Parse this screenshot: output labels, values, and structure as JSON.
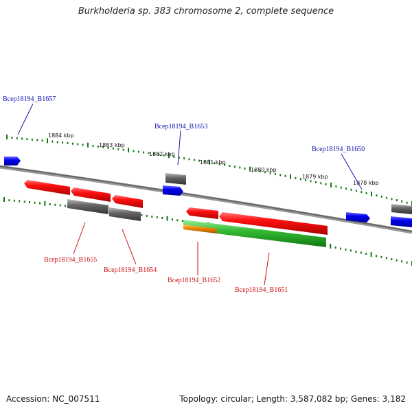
{
  "title": "Burkholderia sp. 383 chromosome 2, complete sequence",
  "footer": {
    "accession": "Accession: NC_007511",
    "summary": "Topology: circular; Length: 3,587,082 bp; Genes: 3,182"
  },
  "scale": {
    "labels": [
      "1884 kbp",
      "1883 kbp",
      "1882 kbp",
      "1881 kbp",
      "1880 kbp",
      "1879 kbp",
      "1878 kbp"
    ]
  },
  "gene_labels": {
    "b1657": "Bcep18194_B1657",
    "b1653": "Bcep18194_B1653",
    "b1650": "Bcep18194_B1650",
    "b1655": "Bcep18194_B1655",
    "b1654": "Bcep18194_B1654",
    "b1652": "Bcep18194_B1652",
    "b1651": "Bcep18194_B1651"
  },
  "colors": {
    "forward_gene": "#0000ee",
    "reverse_gene": "#ee0000",
    "gray_feature": "#666666",
    "green_feature": "#33bb33",
    "orange_feature": "#ee8800",
    "tick": "#117711"
  }
}
